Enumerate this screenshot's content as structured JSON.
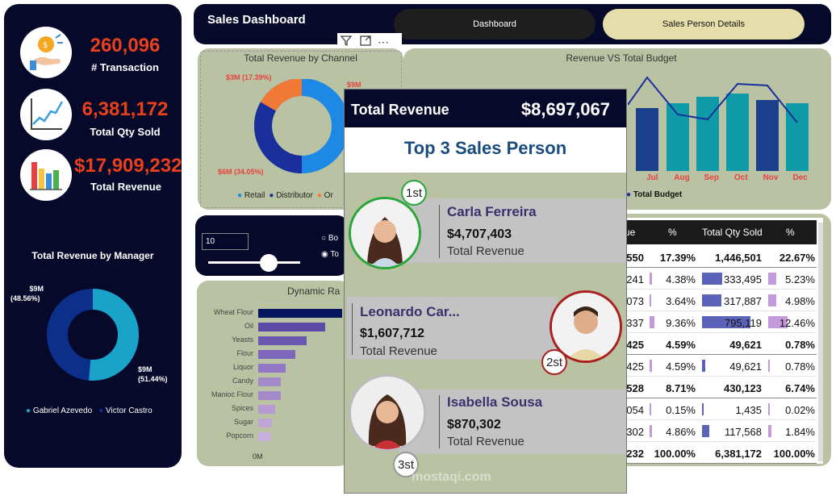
{
  "kpis": [
    {
      "value": "260,096",
      "label": "# Transaction",
      "icon": "money-hand-icon"
    },
    {
      "value": "6,381,172",
      "label": "Total Qty Sold",
      "icon": "line-chart-icon"
    },
    {
      "value": "$17,909,232",
      "label": "Total Revenue",
      "icon": "bar-chart-icon"
    }
  ],
  "header": {
    "title": "Sales Dashboard",
    "tab_dashboard": "Dashboard",
    "tab_sales_person": "Sales Person Details"
  },
  "colors": {
    "navy": "#07092a",
    "sage": "#b9c3a3",
    "accent_red": "#e8401c",
    "tab_active": "#e6deaa"
  },
  "manager_chart": {
    "title": "Total Revenue by Manager",
    "label_a": "$9M",
    "pct_a": "(48.56%)",
    "label_b": "$9M",
    "pct_b": "(51.44%)",
    "legend": [
      "Gabriel Azevedo",
      "Victor Castro"
    ]
  },
  "channel_chart": {
    "title": "Total Revenue by Channel",
    "label_top": "$3M (17.39%)",
    "label_bottom": "$6M (34.05%)",
    "label_right": "$9M",
    "legend": [
      "Retail",
      "Distributor",
      "Or"
    ]
  },
  "budget_chart": {
    "title": "Revenue VS Total Budget",
    "months": [
      "Jul",
      "Aug",
      "Sep",
      "Oct",
      "Nov",
      "Dec"
    ],
    "legend": "Total Budget"
  },
  "filter": {
    "input_value": "10",
    "radio_1": "Bo",
    "radio_2": "To"
  },
  "dynamic_chart": {
    "title": "Dynamic Ra",
    "categories": [
      "Wheat Flour",
      "Oil",
      "Yeasts",
      "Flour",
      "Liquor",
      "Candy",
      "Manioc Flour",
      "Spices",
      "Sugar",
      "Popcorn"
    ],
    "axis_label": "0M"
  },
  "overlay": {
    "total_label": "Total Revenue",
    "total_value": "$8,697,067",
    "title": "Top 3 Sales Person",
    "persons": [
      {
        "name": "Carla Ferreira",
        "revenue": "$4,707,403",
        "label": "Total Revenue",
        "rank": "1st"
      },
      {
        "name": "Leonardo Car...",
        "revenue": "$1,607,712",
        "label": "Total Revenue",
        "rank": "2st"
      },
      {
        "name": "Isabella Sousa",
        "revenue": "$870,302",
        "label": "Total Revenue",
        "rank": "3st"
      }
    ]
  },
  "table": {
    "headers": [
      "ue",
      "%",
      "Total Qty Sold",
      "%"
    ],
    "rows": [
      {
        "c1": "550",
        "c2": "17.39%",
        "c3": "1,446,501",
        "c4": "22.67%",
        "bold": true
      },
      {
        "c1": "241",
        "c2": "4.38%",
        "c3": "333,495",
        "c4": "5.23%",
        "bold": false
      },
      {
        "c1": "073",
        "c2": "3.64%",
        "c3": "317,887",
        "c4": "4.98%",
        "bold": false
      },
      {
        "c1": "337",
        "c2": "9.36%",
        "c3": "795,119",
        "c4": "12.46%",
        "bold": false
      },
      {
        "c1": "425",
        "c2": "4.59%",
        "c3": "49,621",
        "c4": "0.78%",
        "bold": true
      },
      {
        "c1": "425",
        "c2": "4.59%",
        "c3": "49,621",
        "c4": "0.78%",
        "bold": false
      },
      {
        "c1": "528",
        "c2": "8.71%",
        "c3": "430,123",
        "c4": "6.74%",
        "bold": true
      },
      {
        "c1": "054",
        "c2": "0.15%",
        "c3": "1,435",
        "c4": "0.02%",
        "bold": false
      },
      {
        "c1": "302",
        "c2": "4.86%",
        "c3": "117,568",
        "c4": "1.84%",
        "bold": false
      },
      {
        "c1": "232",
        "c2": "100.00%",
        "c3": "6,381,172",
        "c4": "100.00%",
        "bold": true
      }
    ]
  },
  "toolbar": {
    "filter_icon": "filter-icon",
    "focus_icon": "focus-mode-icon",
    "more_icon": "more-options-icon"
  },
  "watermark": "mostaqi.com"
}
